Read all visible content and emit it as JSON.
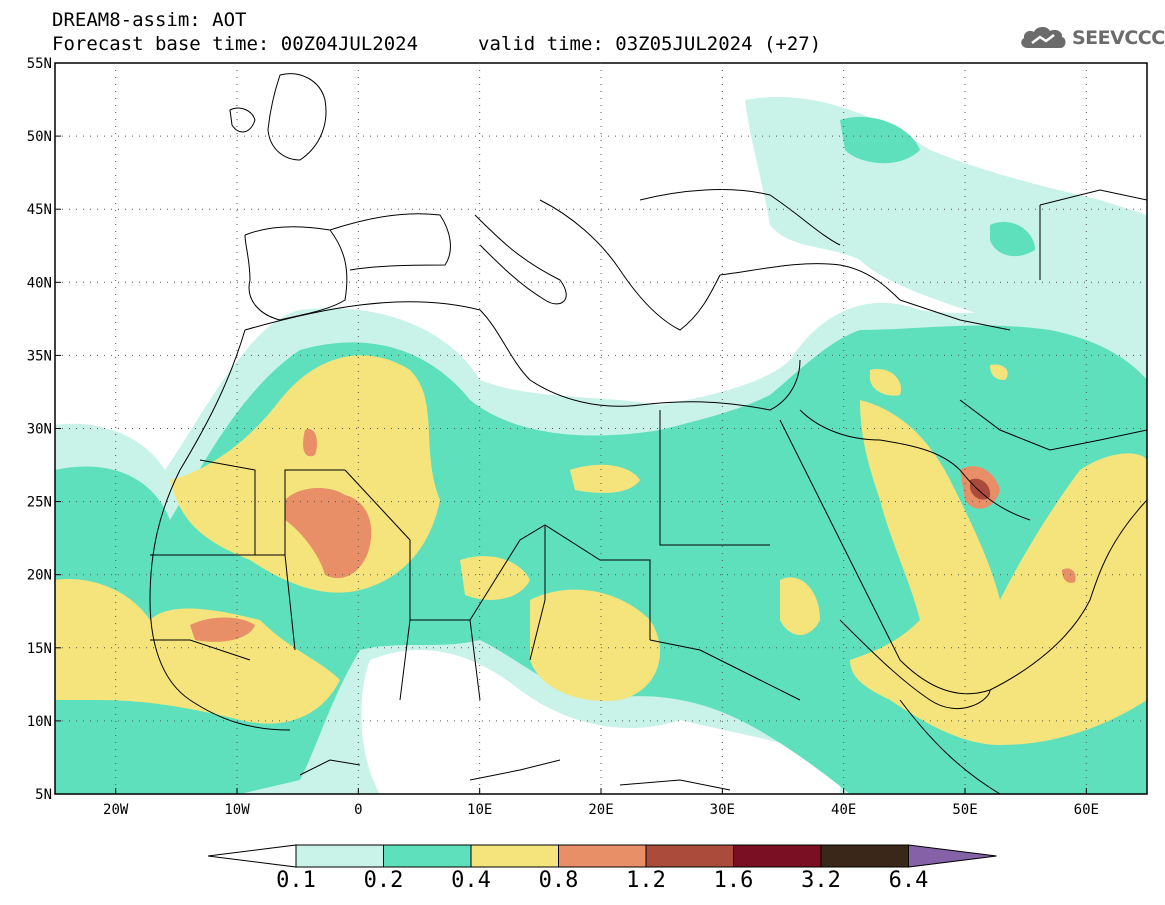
{
  "header": {
    "title_line1": "DREAM8-assim: AOT",
    "title_line2": "Forecast base time: 00Z04JUL2024",
    "valid_time": "valid time: 03Z05JUL2024 (+27)"
  },
  "logo": {
    "text": "SEEVCCC",
    "icon": "cloud-icon"
  },
  "map": {
    "lon_range": [
      -25,
      65
    ],
    "lat_range": [
      5,
      55
    ],
    "lat_labels": [
      "55N",
      "50N",
      "45N",
      "40N",
      "35N",
      "30N",
      "25N",
      "20N",
      "15N",
      "10N",
      "5N"
    ],
    "lon_labels": [
      "20W",
      "10W",
      "0",
      "10E",
      "20E",
      "30E",
      "40E",
      "50E",
      "60E"
    ],
    "grid": "dotted"
  },
  "colorbar": {
    "labels": [
      "0.1",
      "0.2",
      "0.4",
      "0.8",
      "1.2",
      "1.6",
      "3.2",
      "6.4"
    ],
    "colors": [
      "#ffffff",
      "#c9f2e8",
      "#5ee0bc",
      "#f5e47c",
      "#e88f67",
      "#aa4b3c",
      "#7a0f24",
      "#3b2719",
      "#8561a8"
    ]
  }
}
